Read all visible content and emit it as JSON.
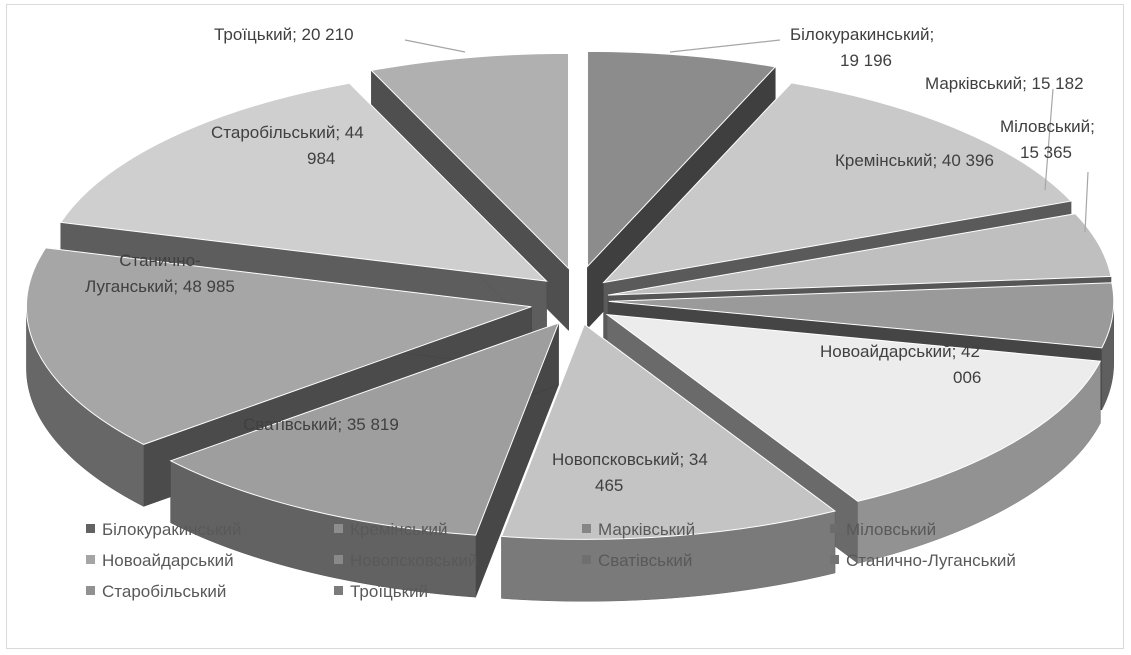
{
  "chart_data": {
    "type": "pie",
    "title": "",
    "exploded": true,
    "three_d": true,
    "legend_position": "bottom",
    "categories": [
      "Білокуракинський",
      "Кремінський",
      "Марківський",
      "Міловський",
      "Новоайдарський",
      "Новопсковський",
      "Сватівський",
      "Станично-Луганський",
      "Старобільський",
      "Троїцький"
    ],
    "values": [
      19196,
      40396,
      15182,
      15365,
      42006,
      34465,
      35819,
      48985,
      44984,
      20210
    ],
    "data_labels": [
      [
        "Білокуракинський;",
        "19 196"
      ],
      [
        "Кремінський; 40 396"
      ],
      [
        "Марківський; 15 182"
      ],
      [
        "Міловський;",
        "15 365"
      ],
      [
        "Новоайдарський; 42",
        "006"
      ],
      [
        "Новопсковський; 34",
        "465"
      ],
      [
        "Сватівський; 35 819"
      ],
      [
        "Станично-",
        "Луганський; 48 985"
      ],
      [
        "Старобільський; 44",
        "984"
      ],
      [
        "Троїцький; 20 210"
      ]
    ],
    "colors": [
      "#8c8c8c",
      "#c9c9c9",
      "#bfbfbf",
      "#9a9a9a",
      "#ececec",
      "#c4c4c4",
      "#9e9e9e",
      "#a6a6a6",
      "#cfcfcf",
      "#b0b0b0"
    ]
  }
}
